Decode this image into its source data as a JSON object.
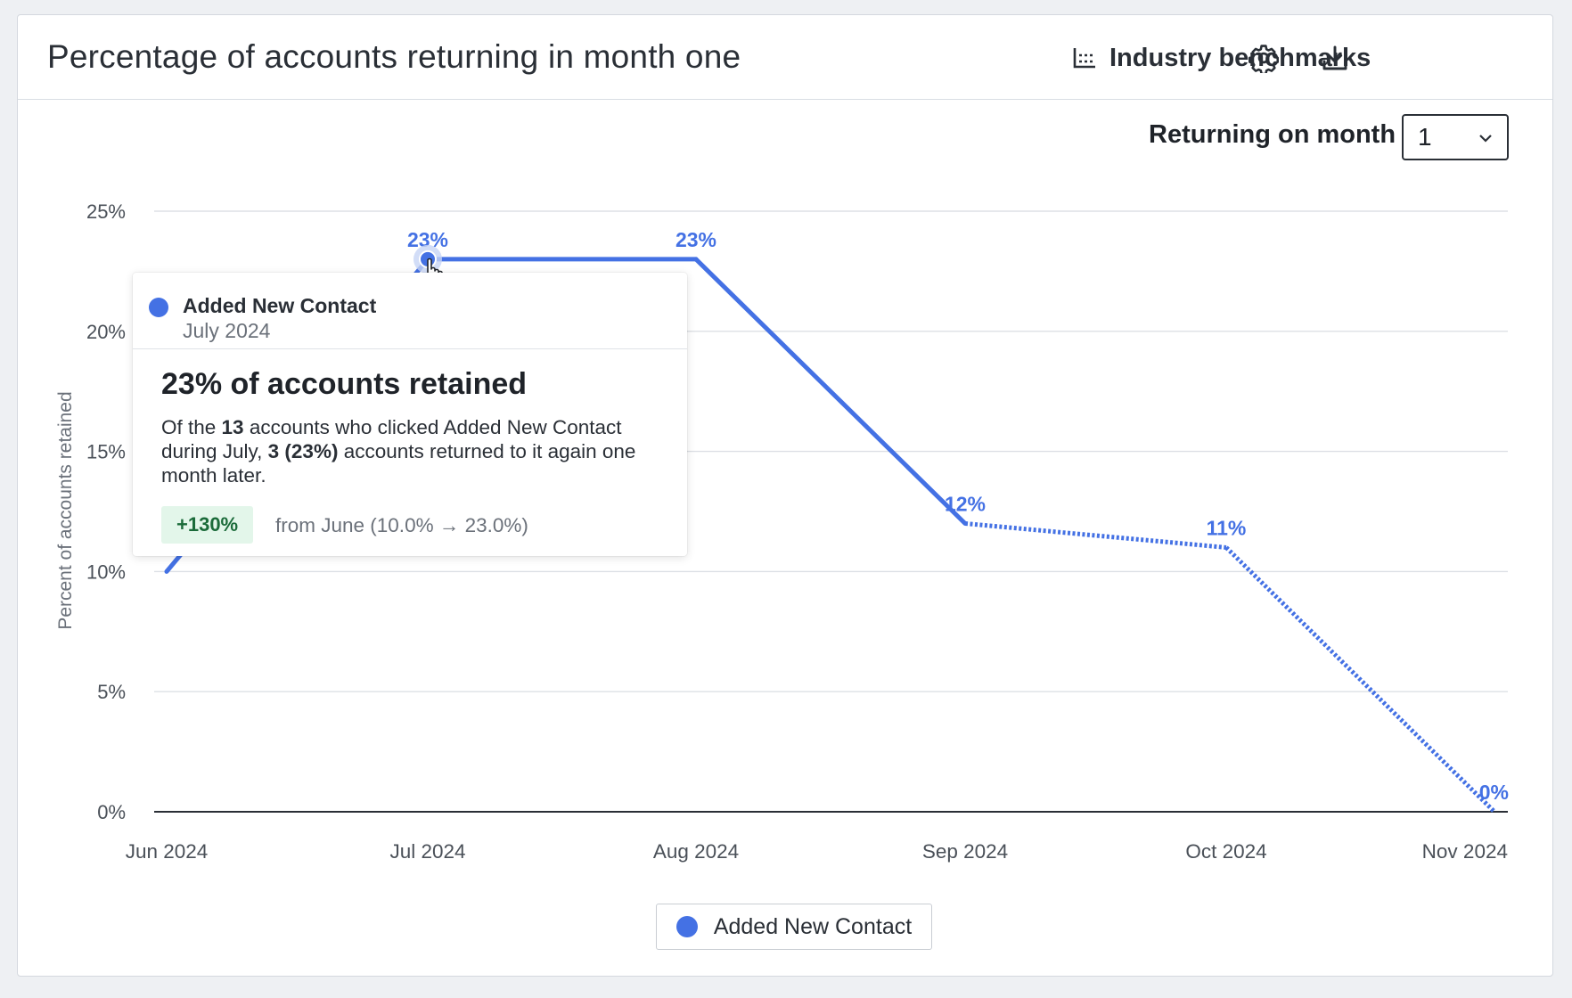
{
  "header": {
    "title": "Percentage of accounts returning in month one",
    "benchmarks_label": "Industry benchmarks"
  },
  "controls": {
    "returning_label": "Returning on month",
    "returning_value": "1"
  },
  "chart_data": {
    "type": "line",
    "categories": [
      "Jun 2024",
      "Jul 2024",
      "Aug 2024",
      "Sep 2024",
      "Oct 2024",
      "Nov 2024"
    ],
    "series": [
      {
        "name": "Added New Contact",
        "values": [
          10,
          23,
          23,
          12,
          11,
          0
        ],
        "data_labels": [
          "",
          "23%",
          "23%",
          "12%",
          "11%",
          "0%"
        ],
        "dashed_from_index": 3,
        "color": "#4471e4"
      }
    ],
    "ylabel": "Percent of accounts retained",
    "y_ticks": [
      "0%",
      "5%",
      "10%",
      "15%",
      "20%",
      "25%"
    ],
    "ylim": [
      0,
      25
    ],
    "grid": true,
    "highlighted_index": 1
  },
  "tooltip": {
    "series": "Added New Contact",
    "month": "July 2024",
    "headline": "23% of accounts retained",
    "desc_pre": "Of the ",
    "desc_count": "13",
    "desc_mid": " accounts who clicked Added New Contact during July, ",
    "desc_returned": "3 (23%)",
    "desc_post": " accounts returned to it again one month later.",
    "badge": "+130%",
    "from_text": "from June (10.0% → 23.0%)"
  },
  "legend": {
    "label": "Added New Contact"
  }
}
